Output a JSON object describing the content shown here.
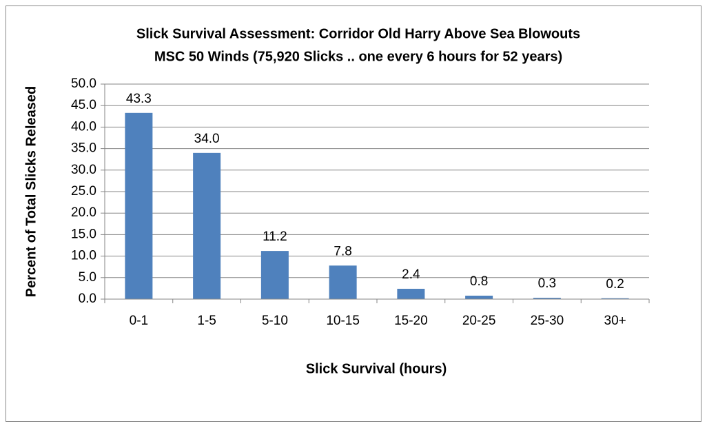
{
  "chart_data": {
    "type": "bar",
    "title": [
      "Slick Survival  Assessment: Corridor Old Harry Above Sea Blowouts",
      "MSC 50 Winds (75,920 Slicks .. one every 6 hours for 52 years)"
    ],
    "x_label": "Slick Survival  (hours)",
    "y_label": "Percent of Total Slicks  Released",
    "categories": [
      "0-1",
      "1-5",
      "5-10",
      "10-15",
      "15-20",
      "20-25",
      "25-30",
      "30+"
    ],
    "values": [
      43.3,
      34.0,
      11.2,
      7.8,
      2.4,
      0.8,
      0.3,
      0.2
    ],
    "value_labels": [
      "43.3",
      "34.0",
      "11.2",
      "7.8",
      "2.4",
      "0.8",
      "0.3",
      "0.2"
    ],
    "color": "#4f81bd",
    "ylim": [
      0,
      50
    ],
    "yticks": [
      {
        "value": 0,
        "label": "0.0"
      },
      {
        "value": 5,
        "label": "5.0"
      },
      {
        "value": 10,
        "label": "10.0"
      },
      {
        "value": 15,
        "label": "15.0"
      },
      {
        "value": 20,
        "label": "20.0"
      },
      {
        "value": 25,
        "label": "25.0"
      },
      {
        "value": 30,
        "label": "30.0"
      },
      {
        "value": 35,
        "label": "35.0"
      },
      {
        "value": 40,
        "label": "40.0"
      },
      {
        "value": 45,
        "label": "45.0"
      },
      {
        "value": 50,
        "label": "50.0"
      }
    ],
    "grid": true
  }
}
